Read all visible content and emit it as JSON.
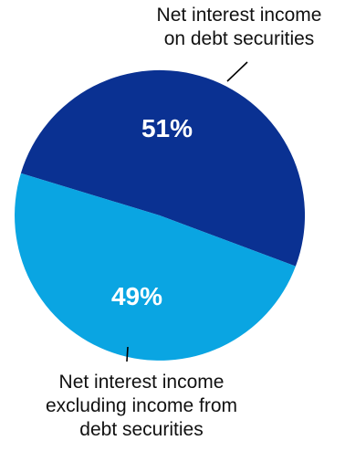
{
  "chart_data": {
    "type": "pie",
    "slices": [
      {
        "label_lines": [
          "Net interest income",
          "on debt securities"
        ],
        "value": 51,
        "display": "51%",
        "color": "#0a3192"
      },
      {
        "label_lines": [
          "Net interest income",
          "excluding income from",
          "debt securities"
        ],
        "value": 49,
        "display": "49%",
        "color": "#0aa5e2"
      }
    ],
    "legend": "none"
  }
}
